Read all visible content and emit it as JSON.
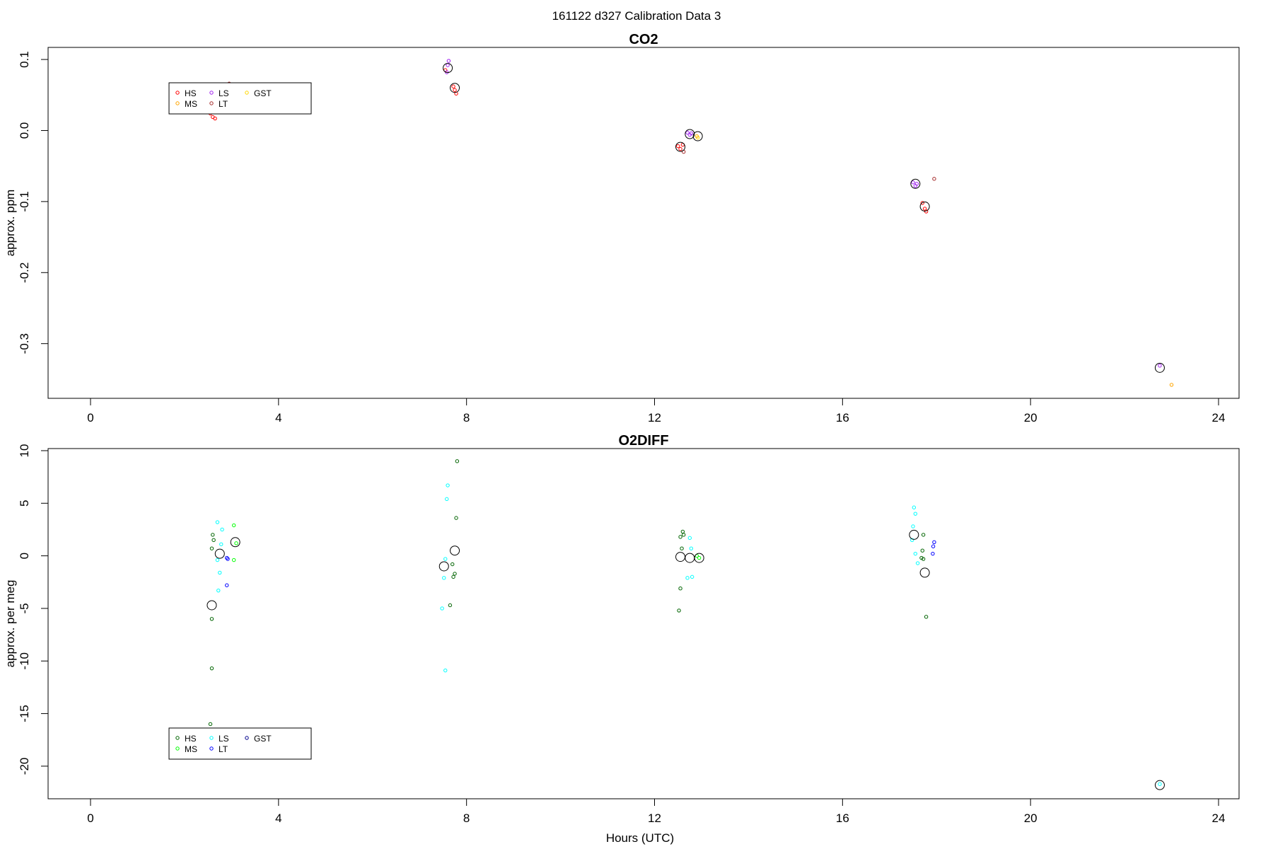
{
  "figure": {
    "title": "161122   d327   Calibration Data 3",
    "xlabel": "Hours (UTC)"
  },
  "chart_data": [
    {
      "type": "scatter",
      "title": "CO2",
      "xlabel": "",
      "ylabel": "approx. ppm",
      "xlim": [
        -1.1,
        24.4
      ],
      "ylim": [
        -0.377,
        0.117
      ],
      "x_ticks": [
        0,
        4,
        8,
        12,
        16,
        20,
        24
      ],
      "y_ticks": [
        0.1,
        0.0,
        -0.1,
        -0.2,
        -0.3
      ],
      "y_tick_labels": [
        "0.1",
        "0.0",
        "-0.1",
        "-0.2",
        "-0.3"
      ],
      "legend": {
        "position": "top-left",
        "entries": [
          {
            "label": "HS",
            "color": "#ff0000"
          },
          {
            "label": "MS",
            "color": "#ffa500"
          },
          {
            "label": "LS",
            "color": "#a020f0"
          },
          {
            "label": "LT",
            "color": "#a52a2a"
          },
          {
            "label": "GST",
            "color": "#ffd700"
          }
        ]
      },
      "points": [
        {
          "x": 2.45,
          "y": 0.036,
          "c": "#ff0000"
        },
        {
          "x": 2.55,
          "y": 0.024,
          "c": "#ff0000"
        },
        {
          "x": 2.6,
          "y": 0.019,
          "c": "#ff0000"
        },
        {
          "x": 2.65,
          "y": 0.017,
          "c": "#ff0000"
        },
        {
          "x": 2.95,
          "y": 0.066,
          "c": "#a52a2a"
        },
        {
          "x": 7.55,
          "y": 0.085,
          "c": "#ff0000"
        },
        {
          "x": 7.6,
          "y": 0.092,
          "c": "#a020f0"
        },
        {
          "x": 7.62,
          "y": 0.098,
          "c": "#a020f0"
        },
        {
          "x": 7.58,
          "y": 0.082,
          "c": "#a020f0"
        },
        {
          "x": 7.72,
          "y": 0.062,
          "c": "#ff0000"
        },
        {
          "x": 7.75,
          "y": 0.057,
          "c": "#ff0000"
        },
        {
          "x": 7.78,
          "y": 0.052,
          "c": "#ff0000"
        },
        {
          "x": 12.5,
          "y": -0.022,
          "c": "#ff0000"
        },
        {
          "x": 12.55,
          "y": -0.026,
          "c": "#ff0000"
        },
        {
          "x": 12.6,
          "y": -0.02,
          "c": "#ff0000"
        },
        {
          "x": 12.62,
          "y": -0.03,
          "c": "#a52a2a"
        },
        {
          "x": 12.7,
          "y": -0.003,
          "c": "#a020f0"
        },
        {
          "x": 12.75,
          "y": -0.006,
          "c": "#a020f0"
        },
        {
          "x": 12.78,
          "y": -0.004,
          "c": "#a020f0"
        },
        {
          "x": 12.9,
          "y": -0.008,
          "c": "#ffa500"
        },
        {
          "x": 12.92,
          "y": -0.01,
          "c": "#ffd700"
        },
        {
          "x": 17.5,
          "y": -0.073,
          "c": "#a020f0"
        },
        {
          "x": 17.55,
          "y": -0.078,
          "c": "#a020f0"
        },
        {
          "x": 17.58,
          "y": -0.075,
          "c": "#a020f0"
        },
        {
          "x": 17.7,
          "y": -0.102,
          "c": "#ff0000"
        },
        {
          "x": 17.75,
          "y": -0.11,
          "c": "#ff0000"
        },
        {
          "x": 17.78,
          "y": -0.114,
          "c": "#ff0000"
        },
        {
          "x": 17.95,
          "y": -0.068,
          "c": "#a52a2a"
        },
        {
          "x": 22.75,
          "y": -0.331,
          "c": "#a020f0"
        },
        {
          "x": 23.0,
          "y": -0.358,
          "c": "#ffa500"
        }
      ],
      "means": [
        {
          "x": 7.6,
          "y": 0.088
        },
        {
          "x": 7.75,
          "y": 0.06
        },
        {
          "x": 12.55,
          "y": -0.023
        },
        {
          "x": 12.75,
          "y": -0.005
        },
        {
          "x": 12.92,
          "y": -0.008
        },
        {
          "x": 17.55,
          "y": -0.075
        },
        {
          "x": 17.75,
          "y": -0.107
        },
        {
          "x": 22.75,
          "y": -0.334
        }
      ]
    },
    {
      "type": "scatter",
      "title": "O2DIFF",
      "xlabel": "Hours (UTC)",
      "ylabel": "approx. per meg",
      "xlim": [
        -1.1,
        24.4
      ],
      "ylim": [
        -23.1,
        10.2
      ],
      "x_ticks": [
        0,
        4,
        8,
        12,
        16,
        20,
        24
      ],
      "y_ticks": [
        10,
        5,
        0,
        -5,
        -10,
        -15,
        -20
      ],
      "y_tick_labels": [
        "10",
        "5",
        "0",
        "-5",
        "-10",
        "-15",
        "-20"
      ],
      "legend": {
        "position": "bottom-left",
        "entries": [
          {
            "label": "HS",
            "color": "#006400"
          },
          {
            "label": "MS",
            "color": "#00ff00"
          },
          {
            "label": "LS",
            "color": "#00ffff"
          },
          {
            "label": "LT",
            "color": "#0000ff"
          },
          {
            "label": "GST",
            "color": "#00008b"
          }
        ]
      },
      "points": [
        {
          "x": 2.6,
          "y": 2.0,
          "c": "#006400"
        },
        {
          "x": 2.62,
          "y": 1.5,
          "c": "#006400"
        },
        {
          "x": 2.58,
          "y": 0.7,
          "c": "#006400"
        },
        {
          "x": 2.58,
          "y": -6.0,
          "c": "#006400"
        },
        {
          "x": 2.58,
          "y": -10.7,
          "c": "#006400"
        },
        {
          "x": 2.55,
          "y": -16.0,
          "c": "#006400"
        },
        {
          "x": 2.7,
          "y": 3.2,
          "c": "#00ffff"
        },
        {
          "x": 2.8,
          "y": 2.5,
          "c": "#00ffff"
        },
        {
          "x": 2.78,
          "y": 1.1,
          "c": "#00ffff"
        },
        {
          "x": 2.7,
          "y": -0.4,
          "c": "#00ffff"
        },
        {
          "x": 2.75,
          "y": -1.6,
          "c": "#00ffff"
        },
        {
          "x": 2.72,
          "y": -3.3,
          "c": "#00ffff"
        },
        {
          "x": 2.9,
          "y": -0.2,
          "c": "#0000ff"
        },
        {
          "x": 2.92,
          "y": -0.3,
          "c": "#0000ff"
        },
        {
          "x": 2.9,
          "y": -2.8,
          "c": "#0000ff"
        },
        {
          "x": 3.05,
          "y": 2.9,
          "c": "#00ff00"
        },
        {
          "x": 3.1,
          "y": 1.2,
          "c": "#00ff00"
        },
        {
          "x": 3.05,
          "y": -0.4,
          "c": "#00ff00"
        },
        {
          "x": 7.6,
          "y": 6.7,
          "c": "#00ffff"
        },
        {
          "x": 7.58,
          "y": 5.4,
          "c": "#00ffff"
        },
        {
          "x": 7.55,
          "y": -0.3,
          "c": "#00ffff"
        },
        {
          "x": 7.52,
          "y": -2.1,
          "c": "#00ffff"
        },
        {
          "x": 7.48,
          "y": -5.0,
          "c": "#00ffff"
        },
        {
          "x": 7.55,
          "y": -10.9,
          "c": "#00ffff"
        },
        {
          "x": 7.8,
          "y": 9.0,
          "c": "#006400"
        },
        {
          "x": 7.78,
          "y": 3.6,
          "c": "#006400"
        },
        {
          "x": 7.7,
          "y": -0.8,
          "c": "#006400"
        },
        {
          "x": 7.75,
          "y": -1.7,
          "c": "#006400"
        },
        {
          "x": 7.72,
          "y": -2.0,
          "c": "#006400"
        },
        {
          "x": 7.65,
          "y": -4.7,
          "c": "#006400"
        },
        {
          "x": 12.55,
          "y": 1.8,
          "c": "#006400"
        },
        {
          "x": 12.6,
          "y": 2.3,
          "c": "#006400"
        },
        {
          "x": 12.62,
          "y": 2.0,
          "c": "#006400"
        },
        {
          "x": 12.58,
          "y": 0.7,
          "c": "#006400"
        },
        {
          "x": 12.55,
          "y": -3.1,
          "c": "#006400"
        },
        {
          "x": 12.52,
          "y": -5.2,
          "c": "#006400"
        },
        {
          "x": 12.75,
          "y": 1.7,
          "c": "#00ffff"
        },
        {
          "x": 12.78,
          "y": 0.7,
          "c": "#00ffff"
        },
        {
          "x": 12.7,
          "y": -2.1,
          "c": "#00ffff"
        },
        {
          "x": 12.8,
          "y": -2.0,
          "c": "#00ffff"
        },
        {
          "x": 12.9,
          "y": 0.0,
          "c": "#00ff00"
        },
        {
          "x": 12.95,
          "y": -0.2,
          "c": "#00ff00"
        },
        {
          "x": 17.52,
          "y": 4.6,
          "c": "#00ffff"
        },
        {
          "x": 17.55,
          "y": 4.0,
          "c": "#00ffff"
        },
        {
          "x": 17.5,
          "y": 2.8,
          "c": "#00ffff"
        },
        {
          "x": 17.48,
          "y": 1.5,
          "c": "#00ffff"
        },
        {
          "x": 17.55,
          "y": 0.2,
          "c": "#00ffff"
        },
        {
          "x": 17.6,
          "y": -0.7,
          "c": "#00ffff"
        },
        {
          "x": 17.72,
          "y": 2.0,
          "c": "#006400"
        },
        {
          "x": 17.7,
          "y": 0.5,
          "c": "#006400"
        },
        {
          "x": 17.68,
          "y": -0.2,
          "c": "#006400"
        },
        {
          "x": 17.72,
          "y": -0.3,
          "c": "#006400"
        },
        {
          "x": 17.78,
          "y": -5.8,
          "c": "#006400"
        },
        {
          "x": 17.95,
          "y": 1.3,
          "c": "#0000ff"
        },
        {
          "x": 17.93,
          "y": 0.9,
          "c": "#0000ff"
        },
        {
          "x": 17.92,
          "y": 0.2,
          "c": "#0000ff"
        },
        {
          "x": 22.75,
          "y": -21.7,
          "c": "#00ffff"
        }
      ],
      "means": [
        {
          "x": 2.58,
          "y": -4.7
        },
        {
          "x": 2.75,
          "y": 0.2
        },
        {
          "x": 3.08,
          "y": 1.3
        },
        {
          "x": 7.52,
          "y": -1.0
        },
        {
          "x": 7.75,
          "y": 0.5
        },
        {
          "x": 12.55,
          "y": -0.1
        },
        {
          "x": 12.75,
          "y": -0.2
        },
        {
          "x": 12.95,
          "y": -0.2
        },
        {
          "x": 17.52,
          "y": 2.0
        },
        {
          "x": 17.75,
          "y": -1.6
        },
        {
          "x": 22.75,
          "y": -21.8
        }
      ]
    }
  ]
}
